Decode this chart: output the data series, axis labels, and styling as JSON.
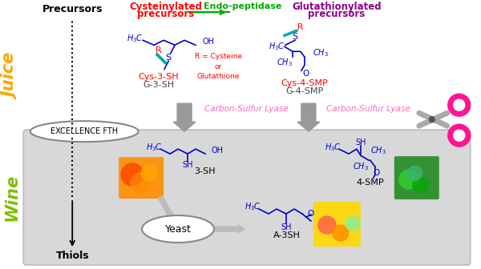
{
  "background_color": "#ffffff",
  "wine_box_color": "#d8d8d8",
  "juice_label": "Juice",
  "juice_label_color": "#FFA500",
  "wine_label": "Wine",
  "wine_label_color": "#7FBF00",
  "precursors_text": "Precursors",
  "thiols_text": "Thiols",
  "excellence_text": "EXCELLENCE FTH",
  "yeast_text": "Yeast",
  "cysteinylated_line1": "Cysteinylated",
  "cysteinylated_line2": "precursors",
  "cysteinylated_color": "#FF0000",
  "endo_peptidase_text": "Endo-peptidase",
  "endo_peptidase_color": "#00AA00",
  "glutathionylated_line1": "Glutathionylated",
  "glutathionylated_line2": "precursors",
  "glutathionylated_color": "#8B008B",
  "carbon_sulfur_lyase_color": "#FF69B4",
  "cys3sh_text": "Cys-3-SH",
  "g3sh_text": "G-3-SH",
  "cys4smp_text": "Cys-4-SMP",
  "g4smp_text": "G-4-SMP",
  "r_eq_text": "R = Cysteine\nor\nGlutathione",
  "r_text_color": "#FF0000",
  "thiol_3sh_text": "3-SH",
  "thiol_4smp_text": "4-SMP",
  "a3sh_text": "A-3SH",
  "molecule_color": "#0000CD",
  "molecule_color2": "#4169E1",
  "scissors_blade_color": "#aaaaaa",
  "scissors_handle_color": "#FF1493",
  "arrow_color": "#888888",
  "yeast_arrow_color": "#aaaaaa"
}
